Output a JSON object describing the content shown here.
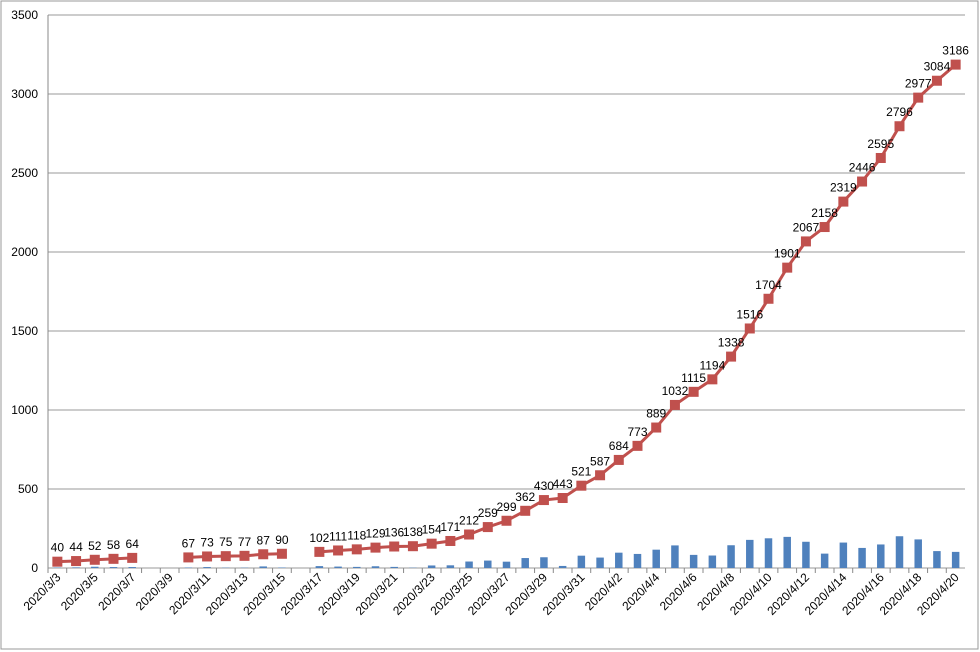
{
  "chart_data": {
    "type": "bar-line",
    "categories": [
      "2020/3/3",
      null,
      "2020/3/5",
      null,
      "2020/3/7",
      null,
      "2020/3/9",
      null,
      "2020/3/11",
      null,
      "2020/3/13",
      null,
      "2020/3/15",
      null,
      "2020/3/17",
      null,
      "2020/3/19",
      null,
      "2020/3/21",
      null,
      "2020/3/23",
      null,
      "2020/3/25",
      null,
      "2020/3/27",
      null,
      "2020/3/29",
      null,
      "2020/3/31",
      null,
      "2020/4/2",
      null,
      "2020/4/4",
      null,
      "2020/4/6",
      null,
      "2020/4/8",
      null,
      "2020/4/10",
      null,
      "2020/4/12",
      null,
      "2020/4/14",
      null,
      "2020/4/16",
      null,
      "2020/4/18",
      null,
      "2020/4/20"
    ],
    "series": [
      {
        "type": "bar",
        "color": "#4f81bd",
        "values": [
          3,
          4,
          8,
          6,
          6,
          null,
          null,
          3,
          6,
          2,
          2,
          10,
          3,
          null,
          12,
          9,
          7,
          11,
          7,
          2,
          16,
          17,
          41,
          47,
          40,
          63,
          68,
          13,
          78,
          66,
          97,
          89,
          116,
          143,
          83,
          79,
          144,
          178,
          188,
          197,
          166,
          91,
          161,
          127,
          149,
          201,
          181,
          107,
          102
        ]
      },
      {
        "type": "line",
        "color": "#c0504d",
        "values": [
          40,
          44,
          52,
          58,
          64,
          null,
          null,
          67,
          73,
          75,
          77,
          87,
          90,
          null,
          102,
          111,
          118,
          129,
          136,
          138,
          154,
          171,
          212,
          259,
          299,
          362,
          430,
          443,
          521,
          587,
          684,
          773,
          889,
          1032,
          1115,
          1194,
          1338,
          1516,
          1704,
          1901,
          2067,
          2158,
          2319,
          2446,
          2595,
          2796,
          2977,
          3084,
          3186
        ]
      }
    ],
    "ylim": [
      0,
      3500
    ],
    "yticks": [
      0,
      500,
      1000,
      1500,
      2000,
      2500,
      3000,
      3500
    ],
    "grid": true
  }
}
